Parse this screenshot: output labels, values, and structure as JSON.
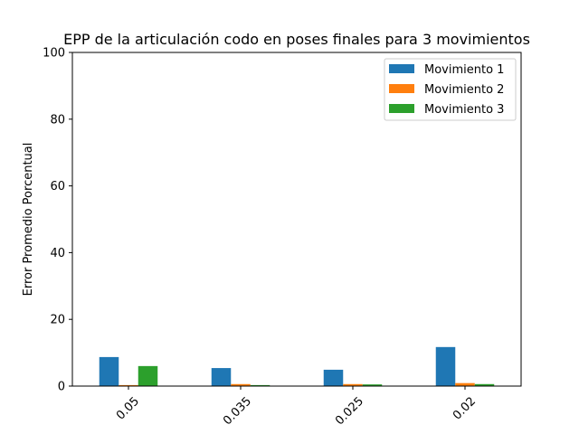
{
  "chart_data": {
    "type": "bar",
    "title": "EPP de la articulación codo en poses finales para 3 movimientos",
    "xlabel": "",
    "ylabel": "Error Promedio Porcentual",
    "categories": [
      "0.05",
      "0.035",
      "0.025",
      "0.02"
    ],
    "series": [
      {
        "name": "Movimiento 1",
        "color": "#1f77b4",
        "values": [
          8.7,
          5.4,
          4.9,
          11.7
        ]
      },
      {
        "name": "Movimiento 2",
        "color": "#ff7f0e",
        "values": [
          0.3,
          0.6,
          0.6,
          0.9
        ]
      },
      {
        "name": "Movimiento 3",
        "color": "#2ca02c",
        "values": [
          6.0,
          0.3,
          0.5,
          0.6
        ]
      }
    ],
    "ylim": [
      0,
      100
    ],
    "yticks": [
      0,
      20,
      40,
      60,
      80,
      100
    ],
    "x_tick_rotation_deg": 45,
    "grid": false,
    "legend_position": "top-right"
  }
}
